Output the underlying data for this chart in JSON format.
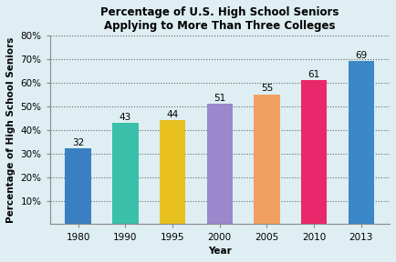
{
  "categories": [
    "1980",
    "1990",
    "1995",
    "2000",
    "2005",
    "2010",
    "2013"
  ],
  "values": [
    32,
    43,
    44,
    51,
    55,
    61,
    69
  ],
  "bar_colors": [
    "#3a7fc1",
    "#3abfaa",
    "#e8c020",
    "#9988cc",
    "#f0a060",
    "#e8286a",
    "#3a88c8"
  ],
  "title_line1": "Percentage of U.S. High School Seniors",
  "title_line2": "Applying to More Than Three Colleges",
  "xlabel": "Year",
  "ylabel": "Percentage of High School Seniors",
  "ylim": [
    0,
    80
  ],
  "yticks": [
    10,
    20,
    30,
    40,
    50,
    60,
    70,
    80
  ],
  "ytick_labels": [
    "10%",
    "20%",
    "30%",
    "40%",
    "50%",
    "60%",
    "70%",
    "80%"
  ],
  "background_color": "#deeef2",
  "title_fontsize": 8.5,
  "axis_label_fontsize": 7.5,
  "tick_fontsize": 7.5,
  "bar_label_fontsize": 7.5,
  "bar_width": 0.55
}
